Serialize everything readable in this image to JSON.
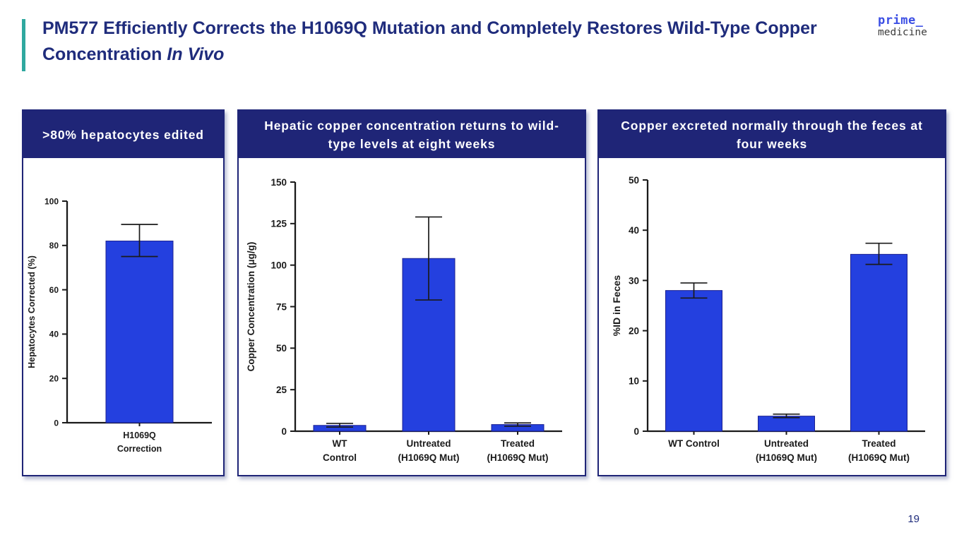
{
  "slide": {
    "title": "PM577 Efficiently Corrects the H1069Q Mutation and Completely Restores Wild-Type Copper Concentration",
    "title_italic": "In Vivo",
    "page_number": "19"
  },
  "logo": {
    "line1": "prime_",
    "line2": "medicine"
  },
  "colors": {
    "navy": "#1F2577",
    "teal": "#2FA89F",
    "title_text": "#1F2C7C",
    "bar": "#2440DF",
    "bar_edge": "#1B2090",
    "axis": "#1a1a1a",
    "logo_blue": "#3B4EE4",
    "logo_gray": "#3C3C3C"
  },
  "chart_data": [
    {
      "type": "bar",
      "title": ">80% hepatocytes edited",
      "ylabel": "Hepatocytes Corrected (%)",
      "ylim": [
        0,
        100
      ],
      "yticks": [
        0,
        20,
        40,
        60,
        80,
        100
      ],
      "categories": [
        [
          "H1069Q",
          "Correction"
        ]
      ],
      "values": [
        82
      ],
      "error_low": [
        75
      ],
      "error_high": [
        89.5
      ],
      "grid": false,
      "legend": false
    },
    {
      "type": "bar",
      "title": "Hepatic copper concentration returns to wild-type levels at eight weeks",
      "ylabel": "Copper Concentration (μg/g)",
      "ylim": [
        0,
        150
      ],
      "yticks": [
        0,
        25,
        50,
        75,
        100,
        125,
        150
      ],
      "categories": [
        [
          "WT",
          "Control"
        ],
        [
          "Untreated",
          "(H1069Q Mut)"
        ],
        [
          "Treated",
          "(H1069Q Mut)"
        ]
      ],
      "values": [
        3.5,
        104,
        4
      ],
      "error_low": [
        2.5,
        79,
        3
      ],
      "error_high": [
        4.7,
        129,
        5
      ],
      "grid": false,
      "legend": false
    },
    {
      "type": "bar",
      "title": "Copper excreted normally through the feces at four weeks",
      "ylabel": "%ID in Feces",
      "ylim": [
        0,
        50
      ],
      "yticks": [
        0,
        10,
        20,
        30,
        40,
        50
      ],
      "categories": [
        [
          "WT Control"
        ],
        [
          "Untreated",
          "(H1069Q Mut)"
        ],
        [
          "Treated",
          "(H1069Q Mut)"
        ]
      ],
      "values": [
        28,
        3,
        35.2
      ],
      "error_low": [
        26.5,
        2.7,
        33.2
      ],
      "error_high": [
        29.5,
        3.4,
        37.4
      ],
      "grid": false,
      "legend": false
    }
  ]
}
